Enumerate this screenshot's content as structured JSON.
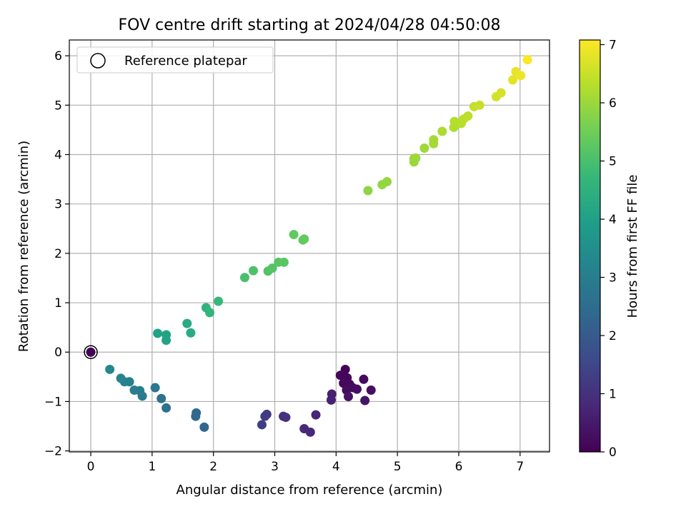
{
  "chart_data": {
    "type": "scatter",
    "title": "FOV centre drift starting at 2024/04/28 04:50:08",
    "xlabel": "Angular distance from reference (arcmin)",
    "ylabel": "Rotation from reference (arcmin)",
    "xlim": [
      -0.35,
      7.48
    ],
    "ylim": [
      -2.02,
      6.32
    ],
    "xticks": [
      0,
      1,
      2,
      3,
      4,
      5,
      6,
      7
    ],
    "yticks": [
      -2,
      -1,
      0,
      1,
      2,
      3,
      4,
      5,
      6
    ],
    "xtick_labels": [
      "0",
      "1",
      "2",
      "3",
      "4",
      "5",
      "6",
      "7"
    ],
    "ytick_labels": [
      "−2",
      "−1",
      "0",
      "1",
      "2",
      "3",
      "4",
      "5",
      "6"
    ],
    "grid": true,
    "legend": {
      "position": "top-left",
      "entries": [
        "Reference platepar"
      ]
    },
    "colorbar": {
      "label": "Hours from first FF file",
      "range": [
        0,
        7.08
      ],
      "ticks": [
        0,
        1,
        2,
        3,
        4,
        5,
        6,
        7
      ],
      "tick_labels": [
        "0",
        "1",
        "2",
        "3",
        "4",
        "5",
        "6",
        "7"
      ],
      "colormap": "viridis"
    },
    "reference_point": {
      "name": "Reference platepar",
      "x": 0,
      "y": 0
    },
    "points": [
      {
        "x": 0,
        "y": 0,
        "t": 0
      },
      {
        "x": 4.15,
        "y": -0.35,
        "t": 0.05
      },
      {
        "x": 4.07,
        "y": -0.47,
        "t": 0.1
      },
      {
        "x": 4.18,
        "y": -0.52,
        "t": 0.12
      },
      {
        "x": 4.12,
        "y": -0.63,
        "t": 0.15
      },
      {
        "x": 4.22,
        "y": -0.65,
        "t": 0.18
      },
      {
        "x": 4.45,
        "y": -0.55,
        "t": 0.2
      },
      {
        "x": 4.27,
        "y": -0.72,
        "t": 0.22
      },
      {
        "x": 4.17,
        "y": -0.77,
        "t": 0.25
      },
      {
        "x": 4.34,
        "y": -0.75,
        "t": 0.28
      },
      {
        "x": 4.57,
        "y": -0.77,
        "t": 0.3
      },
      {
        "x": 4.2,
        "y": -0.9,
        "t": 0.35
      },
      {
        "x": 4.47,
        "y": -0.98,
        "t": 0.4
      },
      {
        "x": 3.93,
        "y": -0.85,
        "t": 0.62
      },
      {
        "x": 3.92,
        "y": -0.97,
        "t": 0.65
      },
      {
        "x": 3.67,
        "y": -1.27,
        "t": 0.72
      },
      {
        "x": 3.48,
        "y": -1.55,
        "t": 0.8
      },
      {
        "x": 3.58,
        "y": -1.62,
        "t": 0.82
      },
      {
        "x": 3.14,
        "y": -1.3,
        "t": 1.0
      },
      {
        "x": 3.18,
        "y": -1.32,
        "t": 1.02
      },
      {
        "x": 2.87,
        "y": -1.26,
        "t": 1.2
      },
      {
        "x": 2.84,
        "y": -1.3,
        "t": 1.22
      },
      {
        "x": 2.79,
        "y": -1.47,
        "t": 1.3
      },
      {
        "x": 1.85,
        "y": -1.52,
        "t": 2.3
      },
      {
        "x": 1.72,
        "y": -1.23,
        "t": 2.4
      },
      {
        "x": 1.71,
        "y": -1.3,
        "t": 2.42
      },
      {
        "x": 1.23,
        "y": -1.13,
        "t": 2.6
      },
      {
        "x": 1.15,
        "y": -0.94,
        "t": 2.65
      },
      {
        "x": 1.05,
        "y": -0.72,
        "t": 2.8
      },
      {
        "x": 0.84,
        "y": -0.89,
        "t": 2.9
      },
      {
        "x": 0.8,
        "y": -0.78,
        "t": 2.95
      },
      {
        "x": 0.71,
        "y": -0.77,
        "t": 3.0
      },
      {
        "x": 0.63,
        "y": -0.6,
        "t": 3.1
      },
      {
        "x": 0.55,
        "y": -0.6,
        "t": 3.15
      },
      {
        "x": 0.49,
        "y": -0.53,
        "t": 3.2
      },
      {
        "x": 0.31,
        "y": -0.35,
        "t": 3.3
      },
      {
        "x": 1.09,
        "y": 0.38,
        "t": 4.05
      },
      {
        "x": 1.23,
        "y": 0.35,
        "t": 4.08
      },
      {
        "x": 1.23,
        "y": 0.24,
        "t": 4.1
      },
      {
        "x": 1.57,
        "y": 0.58,
        "t": 4.3
      },
      {
        "x": 1.63,
        "y": 0.39,
        "t": 4.35
      },
      {
        "x": 1.88,
        "y": 0.9,
        "t": 4.6
      },
      {
        "x": 1.94,
        "y": 0.8,
        "t": 4.65
      },
      {
        "x": 2.08,
        "y": 1.03,
        "t": 4.75
      },
      {
        "x": 2.51,
        "y": 1.51,
        "t": 5.0
      },
      {
        "x": 2.65,
        "y": 1.65,
        "t": 5.05
      },
      {
        "x": 2.89,
        "y": 1.64,
        "t": 5.1
      },
      {
        "x": 2.96,
        "y": 1.7,
        "t": 5.15
      },
      {
        "x": 3.06,
        "y": 1.82,
        "t": 5.2
      },
      {
        "x": 3.15,
        "y": 1.82,
        "t": 5.22
      },
      {
        "x": 3.31,
        "y": 2.38,
        "t": 5.3
      },
      {
        "x": 3.46,
        "y": 2.27,
        "t": 5.35
      },
      {
        "x": 3.48,
        "y": 2.29,
        "t": 5.36
      },
      {
        "x": 4.52,
        "y": 3.27,
        "t": 5.85
      },
      {
        "x": 4.75,
        "y": 3.39,
        "t": 5.9
      },
      {
        "x": 4.83,
        "y": 3.45,
        "t": 5.92
      },
      {
        "x": 5.27,
        "y": 3.85,
        "t": 6.0
      },
      {
        "x": 5.3,
        "y": 3.93,
        "t": 6.02
      },
      {
        "x": 5.27,
        "y": 3.92,
        "t": 6.02
      },
      {
        "x": 5.44,
        "y": 4.13,
        "t": 6.05
      },
      {
        "x": 5.59,
        "y": 4.22,
        "t": 6.1
      },
      {
        "x": 5.59,
        "y": 4.3,
        "t": 6.12
      },
      {
        "x": 5.73,
        "y": 4.47,
        "t": 6.18
      },
      {
        "x": 5.92,
        "y": 4.55,
        "t": 6.25
      },
      {
        "x": 5.93,
        "y": 4.67,
        "t": 6.28
      },
      {
        "x": 6.04,
        "y": 4.63,
        "t": 6.32
      },
      {
        "x": 6.08,
        "y": 4.72,
        "t": 6.35
      },
      {
        "x": 6.15,
        "y": 4.78,
        "t": 6.38
      },
      {
        "x": 6.25,
        "y": 4.97,
        "t": 6.45
      },
      {
        "x": 6.34,
        "y": 5.0,
        "t": 6.5
      },
      {
        "x": 6.61,
        "y": 5.17,
        "t": 6.6
      },
      {
        "x": 6.69,
        "y": 5.25,
        "t": 6.65
      },
      {
        "x": 6.88,
        "y": 5.51,
        "t": 6.8
      },
      {
        "x": 6.93,
        "y": 5.68,
        "t": 6.85
      },
      {
        "x": 7.01,
        "y": 5.6,
        "t": 6.9
      },
      {
        "x": 7.12,
        "y": 5.92,
        "t": 7.05
      }
    ]
  }
}
